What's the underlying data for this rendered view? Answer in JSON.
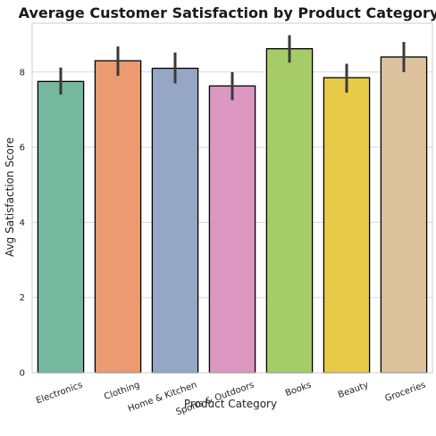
{
  "chart_data": {
    "type": "bar",
    "title": "Average Customer Satisfaction by Product Category",
    "xlabel": "Product Category",
    "ylabel": "Avg Satisfaction Score",
    "categories": [
      "Electronics",
      "Clothing",
      "Home & Kitchen",
      "Sports & Outdoors",
      "Books",
      "Beauty",
      "Groceries"
    ],
    "values": [
      7.75,
      8.3,
      8.1,
      7.63,
      8.62,
      7.85,
      8.4
    ],
    "error_low": [
      7.4,
      7.9,
      7.7,
      7.25,
      8.25,
      7.45,
      8.0
    ],
    "error_high": [
      8.12,
      8.68,
      8.52,
      8.0,
      8.98,
      8.22,
      8.8
    ],
    "ylim": [
      0,
      9.3
    ],
    "yticks": [
      0,
      2,
      4,
      6,
      8
    ],
    "grid": "horizontal",
    "colors": [
      "#76b7a0",
      "#ec9a72",
      "#96a6c5",
      "#dc97c1",
      "#a6cc68",
      "#e6ca48",
      "#dcc39d"
    ],
    "edge_color": "#000000",
    "error_color": "#3a3a3a"
  }
}
